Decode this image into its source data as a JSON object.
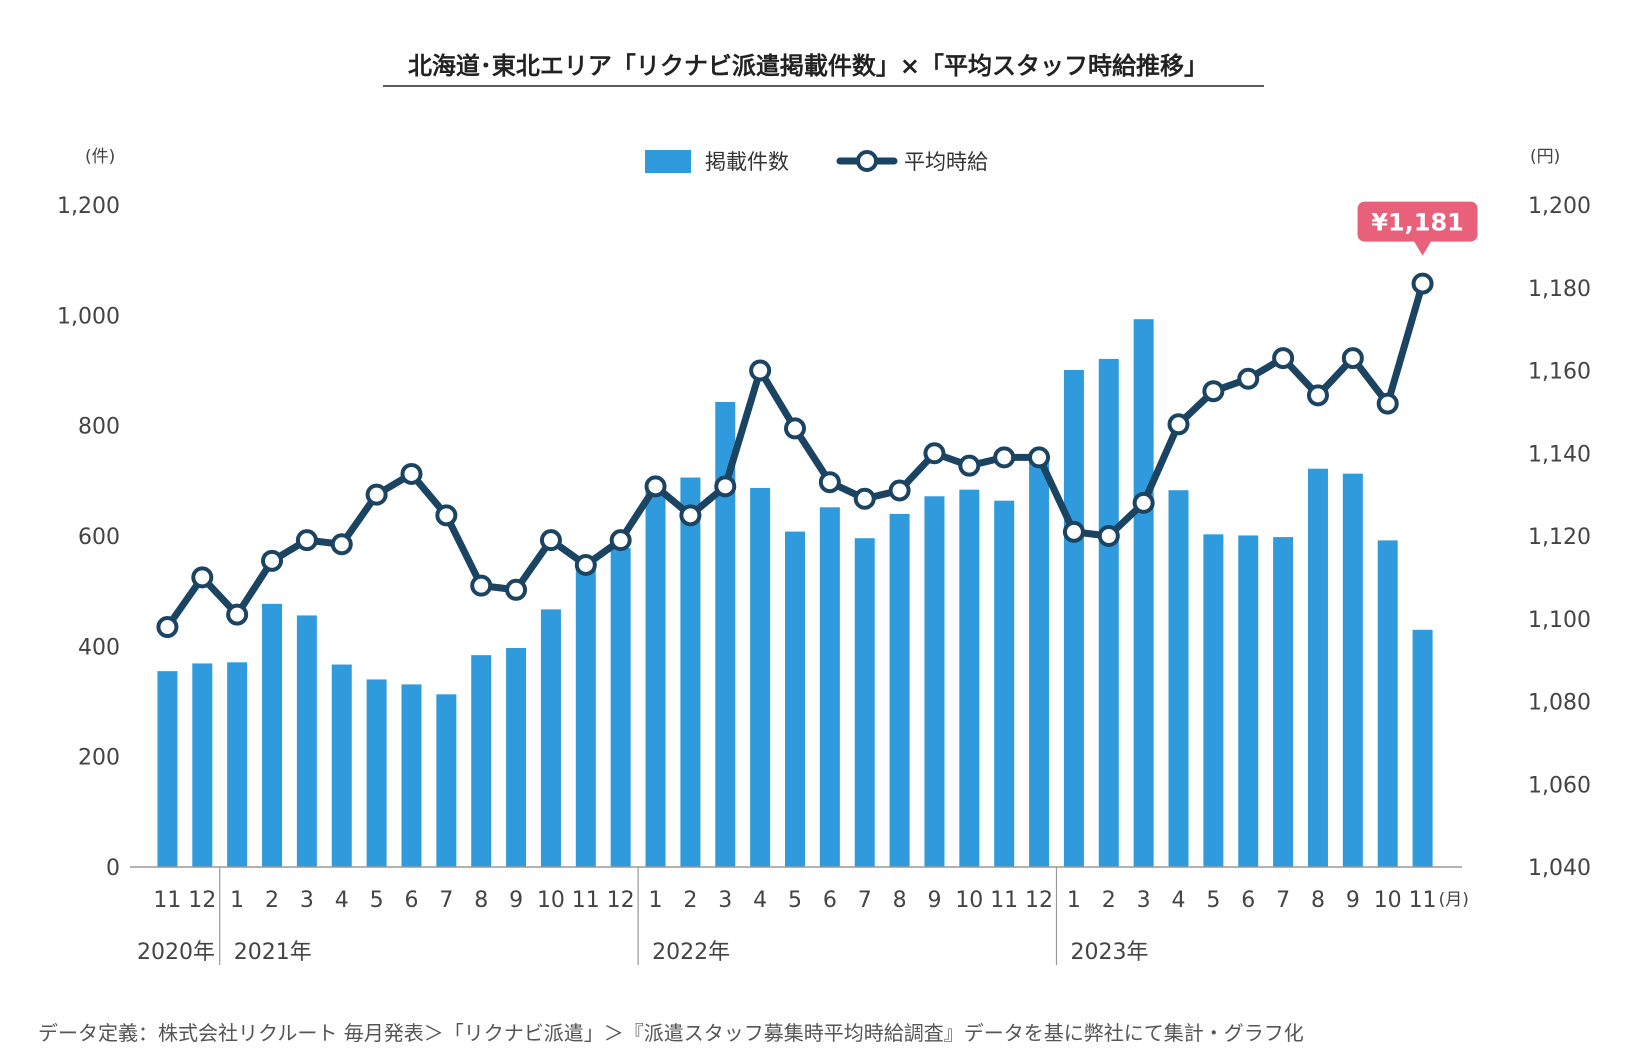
{
  "title": "北海道･東北エリア「リクナビ派遣掲載件数」×「平均スタッフ時給推移」",
  "source_note": "データ定義：株式会社リクルート 毎月発表＞「リクナビ派遣」＞『派遣スタッフ募集時平均時給調査』データを基に弊社にて集計・グラフ化",
  "colors": {
    "bar": "#2f9bdc",
    "line": "#1b4462",
    "callout": "#e9607a",
    "axis": "#999999"
  },
  "chart_data": {
    "type": "bar+line",
    "title": "北海道･東北エリア「リクナビ派遣掲載件数」×「平均スタッフ時給推移」",
    "categories": [
      "11",
      "12",
      "1",
      "2",
      "3",
      "4",
      "5",
      "6",
      "7",
      "8",
      "9",
      "10",
      "11",
      "12",
      "1",
      "2",
      "3",
      "4",
      "5",
      "6",
      "7",
      "8",
      "9",
      "10",
      "11",
      "12",
      "1",
      "2",
      "3",
      "4",
      "5",
      "6",
      "7",
      "8",
      "9",
      "10",
      "11"
    ],
    "x_unit": "(月)",
    "year_labels": [
      {
        "label": "2020年",
        "start_index": 0
      },
      {
        "label": "2021年",
        "start_index": 2
      },
      {
        "label": "2022年",
        "start_index": 14
      },
      {
        "label": "2023年",
        "start_index": 26
      }
    ],
    "legend": {
      "bar": "掲載件数",
      "line": "平均時給"
    },
    "left_axis": {
      "unit": "(件)",
      "range": [
        0,
        1200
      ],
      "ticks": [
        "0",
        "200",
        "400",
        "600",
        "800",
        "1,000",
        "1,200"
      ]
    },
    "right_axis": {
      "unit": "(円)",
      "range": [
        1040,
        1200
      ],
      "ticks": [
        "1,040",
        "1,060",
        "1,080",
        "1,100",
        "1,120",
        "1,140",
        "1,160",
        "1,180",
        "1,200"
      ]
    },
    "series": [
      {
        "name": "掲載件数",
        "type": "bar",
        "axis": "left",
        "values": [
          355,
          369,
          371,
          477,
          456,
          367,
          340,
          331,
          313,
          384,
          397,
          467,
          543,
          578,
          688,
          706,
          843,
          687,
          608,
          652,
          596,
          640,
          672,
          684,
          664,
          740,
          901,
          921,
          993,
          683,
          603,
          601,
          598,
          722,
          713,
          592,
          430
        ]
      },
      {
        "name": "平均時給",
        "type": "line",
        "axis": "right",
        "values": [
          1098,
          1110,
          1101,
          1114,
          1119,
          1118,
          1130,
          1135,
          1125,
          1108,
          1107,
          1119,
          1113,
          1119,
          1132,
          1125,
          1132,
          1160,
          1146,
          1133,
          1129,
          1131,
          1140,
          1137,
          1139,
          1139,
          1121,
          1120,
          1128,
          1147,
          1155,
          1158,
          1163,
          1154,
          1163,
          1152,
          1181
        ]
      }
    ],
    "callout": {
      "label": "¥1,181",
      "index": 36
    },
    "grid": false
  }
}
